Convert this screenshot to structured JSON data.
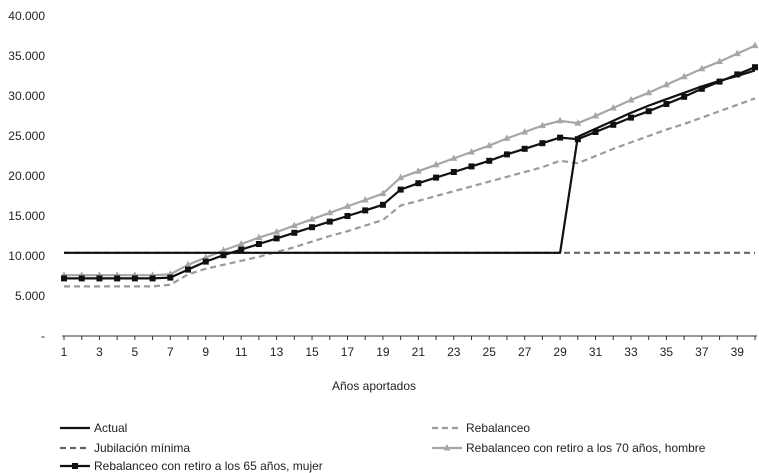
{
  "chart_data": {
    "type": "line",
    "xlabel": "Años aportados",
    "ylabel": "",
    "ylim": [
      0,
      40000
    ],
    "y_ticks": [
      {
        "value": 0,
        "label": "-"
      },
      {
        "value": 5000,
        "label": "5.000"
      },
      {
        "value": 10000,
        "label": "10.000"
      },
      {
        "value": 15000,
        "label": "15.000"
      },
      {
        "value": 20000,
        "label": "20.000"
      },
      {
        "value": 25000,
        "label": "25.000"
      },
      {
        "value": 30000,
        "label": "30.000"
      },
      {
        "value": 35000,
        "label": "35.000"
      },
      {
        "value": 40000,
        "label": "40.000"
      }
    ],
    "x_tick_labels": [
      "1",
      "3",
      "5",
      "7",
      "9",
      "11",
      "13",
      "15",
      "17",
      "19",
      "21",
      "23",
      "25",
      "27",
      "29",
      "31",
      "33",
      "35",
      "37",
      "39"
    ],
    "x": [
      1,
      2,
      3,
      4,
      5,
      6,
      7,
      8,
      9,
      10,
      11,
      12,
      13,
      14,
      15,
      16,
      17,
      18,
      19,
      20,
      21,
      22,
      23,
      24,
      25,
      26,
      27,
      28,
      29,
      30,
      31,
      32,
      33,
      34,
      35,
      36,
      37,
      38,
      39,
      40
    ],
    "grid": false,
    "legend_position": "bottom",
    "series": [
      {
        "name": "Actual",
        "color": "#111111",
        "dash": "solid",
        "marker": "none",
        "values": [
          10400,
          10400,
          10400,
          10400,
          10400,
          10400,
          10400,
          10400,
          10400,
          10400,
          10400,
          10400,
          10400,
          10400,
          10400,
          10400,
          10400,
          10400,
          10400,
          10400,
          10400,
          10400,
          10400,
          10400,
          10400,
          10400,
          10400,
          10400,
          10400,
          24900,
          25900,
          26900,
          27900,
          28800,
          29600,
          30400,
          31200,
          31900,
          32500,
          33200
        ]
      },
      {
        "name": "Rebalanceo",
        "color": "#9a9a9a",
        "dash": "dashed",
        "marker": "none",
        "values": [
          6200,
          6200,
          6200,
          6200,
          6200,
          6200,
          6400,
          7700,
          8400,
          8900,
          9400,
          9900,
          10500,
          11100,
          11800,
          12500,
          13100,
          13800,
          14500,
          16300,
          16900,
          17500,
          18100,
          18700,
          19300,
          19900,
          20500,
          21100,
          21900,
          21600,
          22500,
          23400,
          24200,
          25000,
          25800,
          26500,
          27300,
          28100,
          28900,
          29700
        ]
      },
      {
        "name": "Jubilación mínima",
        "color": "#666666",
        "dash": "dashed",
        "marker": "none",
        "values": [
          10400,
          10400,
          10400,
          10400,
          10400,
          10400,
          10400,
          10400,
          10400,
          10400,
          10400,
          10400,
          10400,
          10400,
          10400,
          10400,
          10400,
          10400,
          10400,
          10400,
          10400,
          10400,
          10400,
          10400,
          10400,
          10400,
          10400,
          10400,
          10400,
          10400,
          10400,
          10400,
          10400,
          10400,
          10400,
          10400,
          10400,
          10400,
          10400,
          10400
        ]
      },
      {
        "name": "Rebalanceo con retiro a los 70 años, hombre",
        "color": "#a6a6a6",
        "dash": "solid",
        "marker": "triangle",
        "values": [
          7600,
          7600,
          7600,
          7600,
          7600,
          7600,
          7700,
          8900,
          9800,
          10700,
          11500,
          12300,
          13000,
          13800,
          14600,
          15400,
          16200,
          17000,
          17800,
          19800,
          20600,
          21400,
          22200,
          23000,
          23800,
          24700,
          25500,
          26300,
          26900,
          26600,
          27500,
          28500,
          29500,
          30400,
          31400,
          32400,
          33400,
          34300,
          35300,
          36300
        ]
      },
      {
        "name": "Rebalanceo con retiro a los 65 años, mujer",
        "color": "#111111",
        "dash": "solid",
        "marker": "square",
        "values": [
          7200,
          7200,
          7200,
          7200,
          7200,
          7200,
          7300,
          8300,
          9300,
          10100,
          10800,
          11500,
          12200,
          12900,
          13600,
          14300,
          15000,
          15700,
          16400,
          18300,
          19100,
          19800,
          20500,
          21200,
          21900,
          22700,
          23400,
          24100,
          24800,
          24600,
          25500,
          26400,
          27300,
          28100,
          29000,
          29900,
          30900,
          31800,
          32700,
          33600
        ]
      }
    ]
  }
}
